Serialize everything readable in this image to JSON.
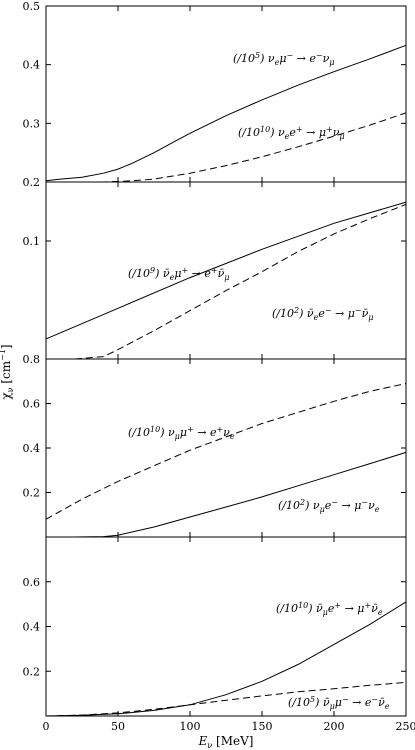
{
  "chart_data": [
    {
      "type": "line",
      "xlim": [
        0,
        250
      ],
      "ylim": [
        0.2,
        0.5
      ],
      "yticks": [
        "0.2",
        "0.3",
        "0.4",
        "0.5"
      ],
      "series": [
        {
          "name": "(/10⁵) νₑμ⁻ → e⁻ν_μ",
          "style": "solid",
          "x": [
            0,
            10,
            25,
            40,
            50,
            60,
            75,
            90,
            100,
            125,
            150,
            175,
            200,
            225,
            250
          ],
          "y": [
            0.202,
            0.205,
            0.208,
            0.215,
            0.222,
            0.232,
            0.25,
            0.27,
            0.283,
            0.313,
            0.34,
            0.365,
            0.388,
            0.41,
            0.433
          ]
        },
        {
          "name": "(/10¹⁰) νₑe⁺ → μ⁺ν_μ",
          "style": "dashed",
          "x": [
            0,
            40,
            60,
            75,
            100,
            125,
            150,
            175,
            200,
            225,
            250
          ],
          "y": [
            0.2,
            0.2,
            0.202,
            0.205,
            0.215,
            0.228,
            0.243,
            0.26,
            0.278,
            0.297,
            0.318
          ]
        }
      ]
    },
    {
      "type": "line",
      "xlim": [
        0,
        250
      ],
      "ylim": [
        0.0,
        0.15
      ],
      "yticks": [
        "0.1"
      ],
      "series": [
        {
          "name": "(/10⁹) ν̄ₑμ⁺ → e⁺ν̄_μ",
          "style": "solid",
          "x": [
            0,
            50,
            100,
            150,
            200,
            250
          ],
          "y": [
            0.017,
            0.043,
            0.069,
            0.093,
            0.115,
            0.133
          ]
        },
        {
          "name": "(/10²) ν̄ₑe⁻ → μ⁻ν̄_μ",
          "style": "dashed",
          "x": [
            20,
            40,
            50,
            75,
            100,
            125,
            150,
            175,
            200,
            225,
            250
          ],
          "y": [
            0.0,
            0.002,
            0.008,
            0.024,
            0.041,
            0.058,
            0.074,
            0.091,
            0.106,
            0.119,
            0.131
          ]
        }
      ]
    },
    {
      "type": "line",
      "xlim": [
        0,
        250
      ],
      "ylim": [
        0.0,
        0.8
      ],
      "yticks": [
        "0.2",
        "0.4",
        "0.6",
        "0.8"
      ],
      "series": [
        {
          "name": "(/10¹⁰) ν_μμ⁺ → e⁺νₑ",
          "style": "dashed",
          "x": [
            0,
            25,
            50,
            75,
            100,
            125,
            150,
            175,
            200,
            225,
            250
          ],
          "y": [
            0.08,
            0.17,
            0.25,
            0.32,
            0.39,
            0.45,
            0.51,
            0.56,
            0.61,
            0.655,
            0.69
          ]
        },
        {
          "name": "(/10²) ν_μe⁻ → μ⁻νₑ",
          "style": "solid",
          "x": [
            20,
            40,
            50,
            75,
            100,
            125,
            150,
            175,
            200,
            225,
            250
          ],
          "y": [
            0.0,
            0.002,
            0.008,
            0.045,
            0.09,
            0.135,
            0.18,
            0.23,
            0.28,
            0.33,
            0.38
          ]
        }
      ]
    },
    {
      "type": "line",
      "xlim": [
        0,
        250
      ],
      "ylim": [
        0.0,
        0.8
      ],
      "xticks": [
        "0",
        "50",
        "100",
        "150",
        "200",
        "250"
      ],
      "yticks": [
        "0.2",
        "0.4",
        "0.6"
      ],
      "xlabel": "E_ν [MeV]",
      "series": [
        {
          "name": "(/10¹⁰) ν̄_μe⁺ → μ⁺ν̄ₑ",
          "style": "solid",
          "x": [
            0,
            25,
            50,
            75,
            100,
            125,
            150,
            175,
            200,
            225,
            250
          ],
          "y": [
            0.0,
            0.003,
            0.01,
            0.025,
            0.05,
            0.095,
            0.155,
            0.23,
            0.32,
            0.41,
            0.51
          ]
        },
        {
          "name": "(/10⁵) ν̄_μμ⁻ → e⁻ν̄ₑ",
          "style": "dashed",
          "x": [
            0,
            25,
            50,
            75,
            100,
            125,
            150,
            175,
            200,
            225,
            250
          ],
          "y": [
            0.0,
            0.004,
            0.014,
            0.03,
            0.05,
            0.07,
            0.09,
            0.108,
            0.122,
            0.137,
            0.15
          ]
        }
      ]
    }
  ],
  "ylabel": "χ_ν [cm⁻¹]"
}
